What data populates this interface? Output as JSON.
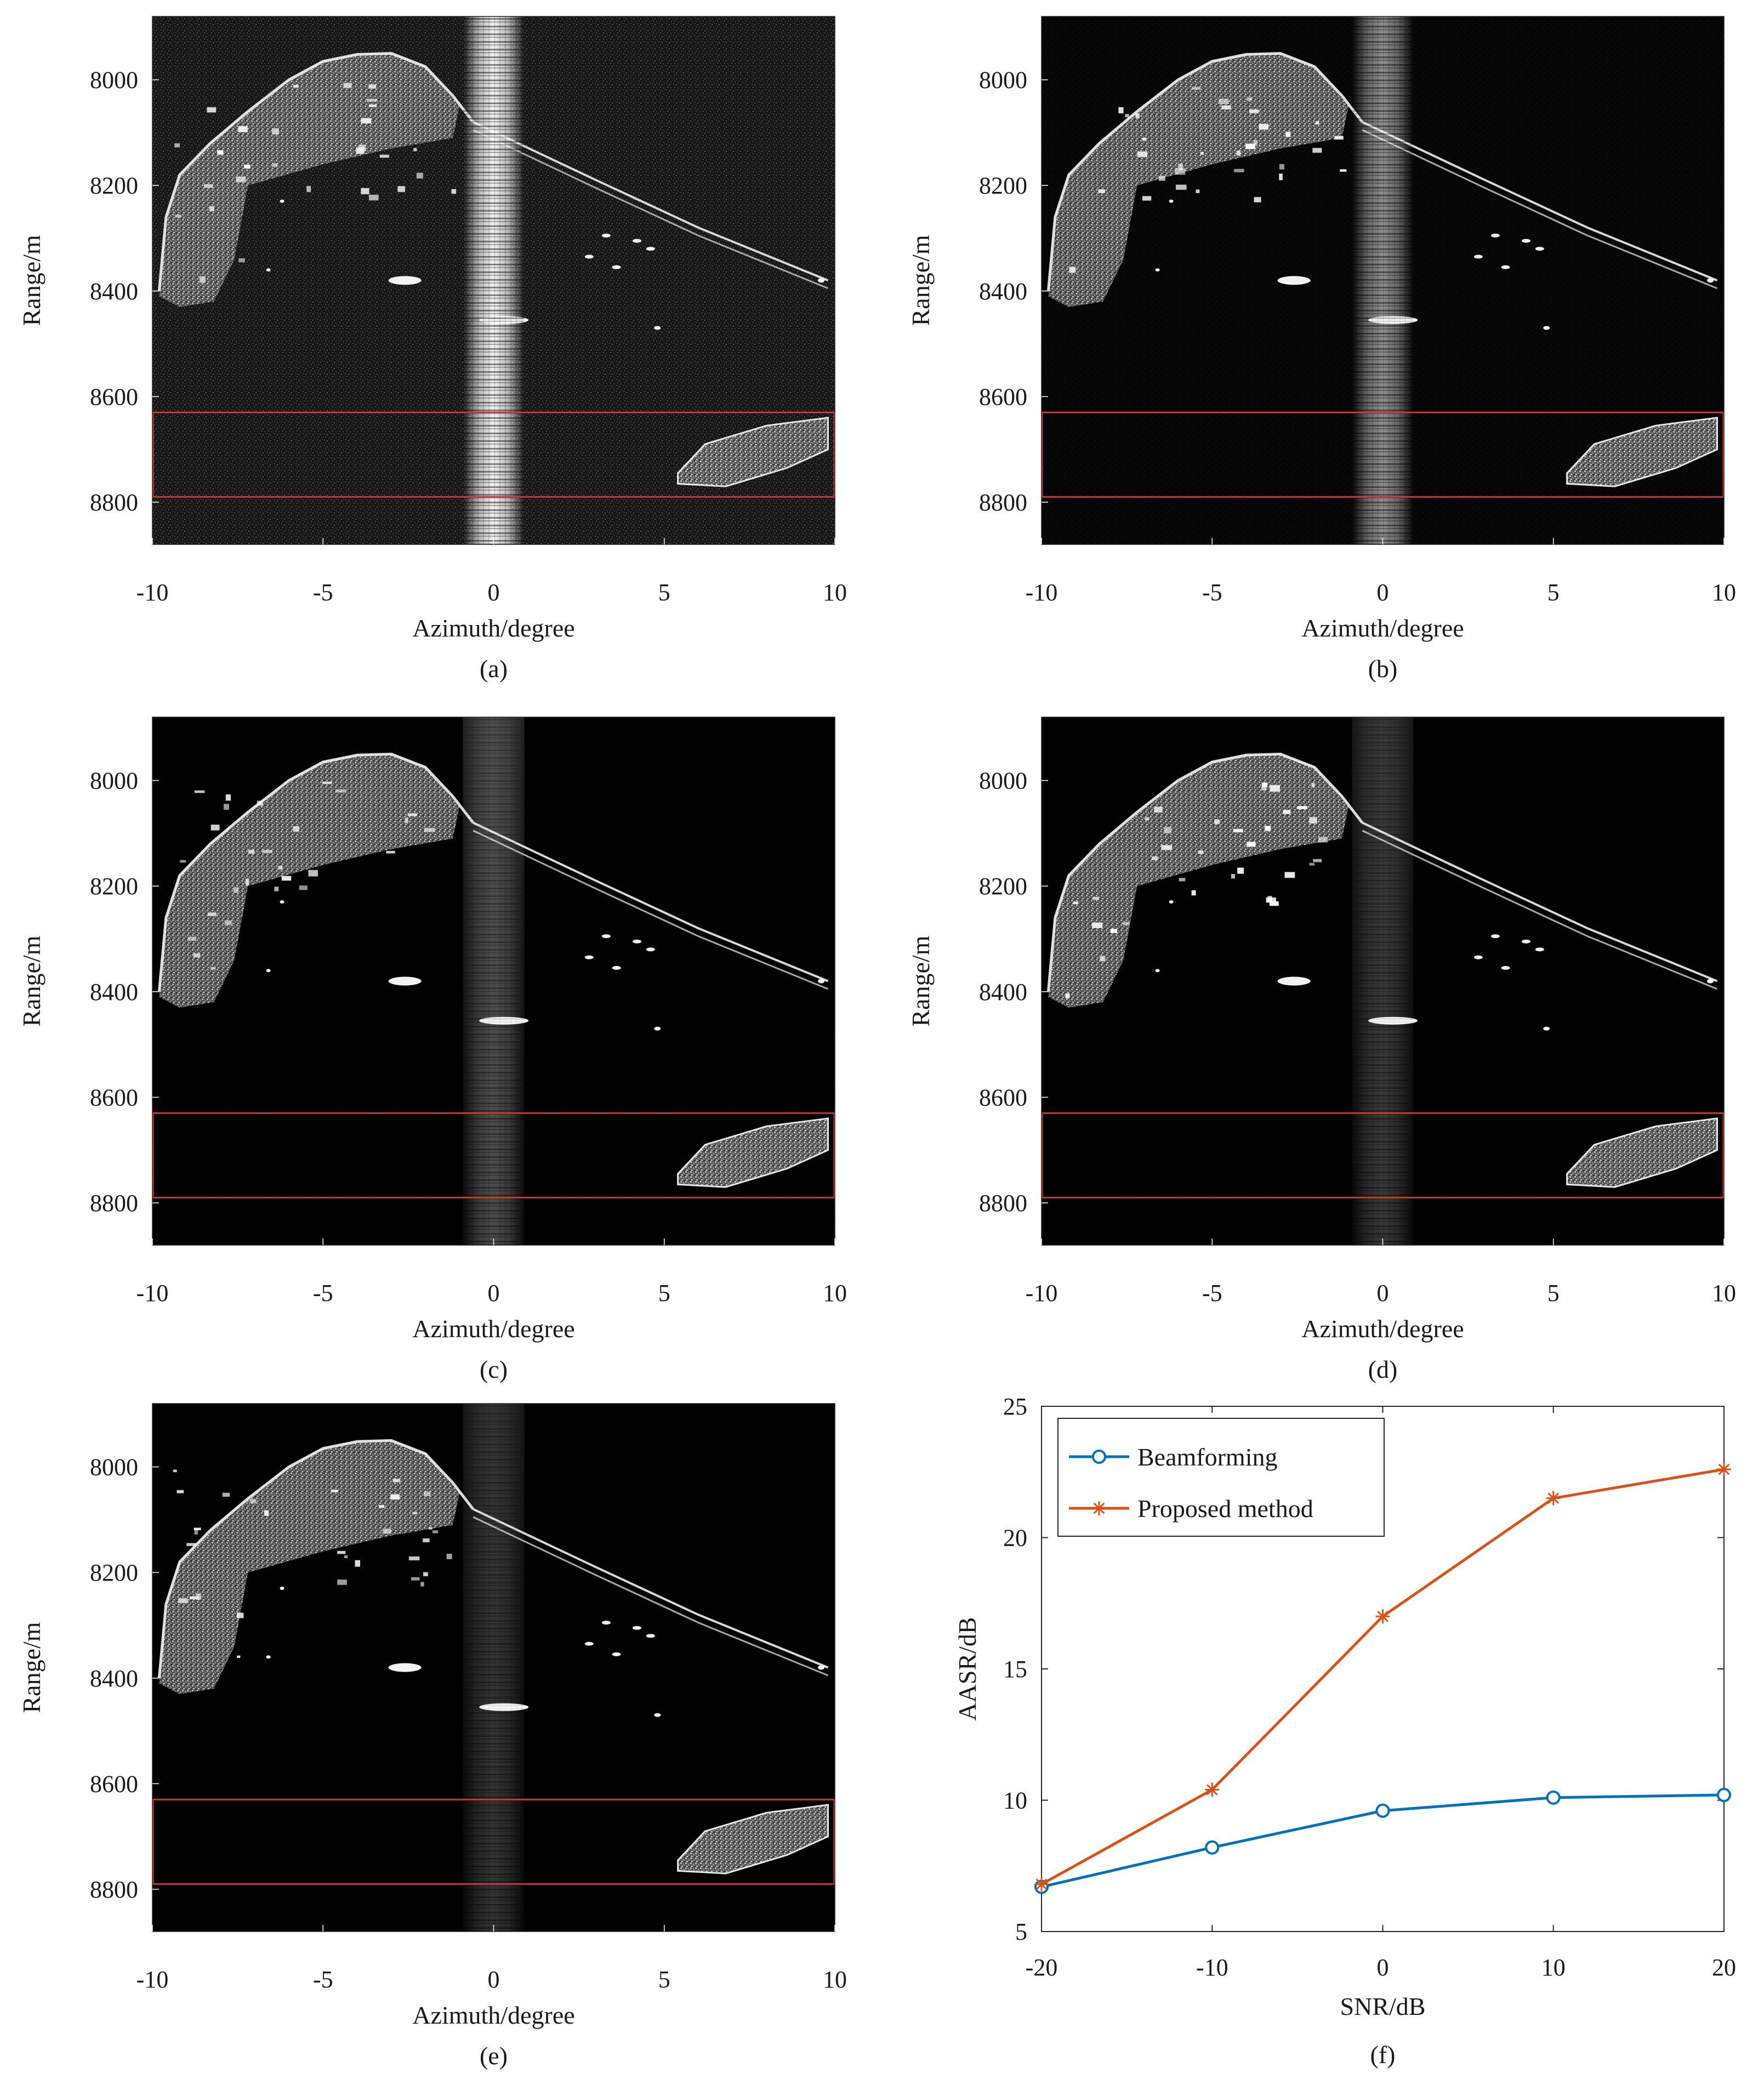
{
  "figure": {
    "sar_panels": [
      {
        "caption": "(a)",
        "xlabel": "Azimuth/degree",
        "ylabel": "Range/m",
        "x_ticks": [
          "-10",
          "-5",
          "0",
          "5",
          "10"
        ],
        "y_ticks": [
          "8000",
          "8200",
          "8400",
          "8600",
          "8800"
        ],
        "noise": 0.55,
        "stripe": 0.95
      },
      {
        "caption": "(b)",
        "xlabel": "Azimuth/degree",
        "ylabel": "Range/m",
        "x_ticks": [
          "-10",
          "-5",
          "0",
          "5",
          "10"
        ],
        "y_ticks": [
          "8000",
          "8200",
          "8400",
          "8600",
          "8800"
        ],
        "noise": 0.12,
        "stripe": 0.55
      },
      {
        "caption": "(c)",
        "xlabel": "Azimuth/degree",
        "ylabel": "Range/m",
        "x_ticks": [
          "-10",
          "-5",
          "0",
          "5",
          "10"
        ],
        "y_ticks": [
          "8000",
          "8200",
          "8400",
          "8600",
          "8800"
        ],
        "noise": 0.03,
        "stripe": 0.3
      },
      {
        "caption": "(d)",
        "xlabel": "Azimuth/degree",
        "ylabel": "Range/m",
        "x_ticks": [
          "-10",
          "-5",
          "0",
          "5",
          "10"
        ],
        "y_ticks": [
          "8000",
          "8200",
          "8400",
          "8600",
          "8800"
        ],
        "noise": 0.02,
        "stripe": 0.22
      },
      {
        "caption": "(e)",
        "xlabel": "Azimuth/degree",
        "ylabel": "Range/m",
        "x_ticks": [
          "-10",
          "-5",
          "0",
          "5",
          "10"
        ],
        "y_ticks": [
          "8000",
          "8200",
          "8400",
          "8600",
          "8800"
        ],
        "noise": 0.02,
        "stripe": 0.2
      }
    ],
    "sar_axes": {
      "xlim": [
        -10,
        10
      ],
      "ylim": [
        7880,
        8880
      ]
    },
    "highlight_box": {
      "range_from": 8630,
      "range_to": 8790,
      "color": "#d9312b"
    }
  },
  "chart_data": {
    "type": "line",
    "caption": "(f)",
    "xlabel": "SNR/dB",
    "ylabel": "AASR/dB",
    "x": [
      -20,
      -10,
      0,
      10,
      20
    ],
    "xlim": [
      -20,
      20
    ],
    "ylim": [
      5,
      25
    ],
    "x_ticks": [
      "-20",
      "-10",
      "0",
      "10",
      "20"
    ],
    "y_ticks": [
      "5",
      "10",
      "15",
      "20",
      "25"
    ],
    "legend_position": "top-left",
    "grid": false,
    "series": [
      {
        "name": "Beamforming",
        "values": [
          6.7,
          8.2,
          9.6,
          10.1,
          10.2
        ],
        "color": "#0072bd",
        "marker": "circle"
      },
      {
        "name": "Proposed method",
        "values": [
          6.8,
          10.4,
          17.0,
          21.5,
          22.6
        ],
        "color": "#d95319",
        "marker": "asterisk"
      }
    ]
  }
}
